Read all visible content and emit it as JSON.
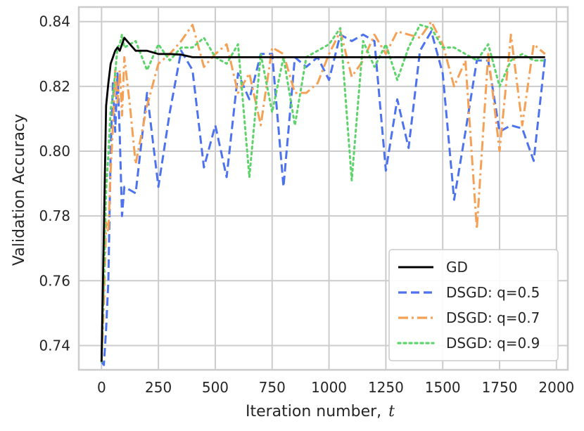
{
  "chart_data": {
    "type": "line",
    "xlabel": "Iteration number,",
    "xlabel_var": "t",
    "ylabel": "Validation Accuracy",
    "xlim": [
      -100,
      2050
    ],
    "ylim": [
      0.7325,
      0.8445
    ],
    "x_ticks": [
      0,
      250,
      500,
      750,
      1000,
      1250,
      1500,
      1750,
      2000
    ],
    "x_tick_labels": [
      "0",
      "250",
      "500",
      "750",
      "1000",
      "1250",
      "1500",
      "1750",
      "2000"
    ],
    "y_ticks": [
      0.74,
      0.76,
      0.78,
      0.8,
      0.82,
      0.84
    ],
    "y_tick_labels": [
      "0.74",
      "0.76",
      "0.78",
      "0.80",
      "0.82",
      "0.84"
    ],
    "grid": true,
    "legend_position": "lower-right",
    "series": [
      {
        "name": "GD",
        "color": "#000000",
        "style": "solid",
        "x": [
          0,
          10,
          20,
          30,
          40,
          50,
          60,
          70,
          80,
          90,
          100,
          125,
          150,
          200,
          250,
          300,
          350,
          400,
          500,
          750,
          1000,
          1250,
          1500,
          1750,
          1950
        ],
        "y": [
          0.735,
          0.775,
          0.814,
          0.821,
          0.827,
          0.829,
          0.831,
          0.832,
          0.831,
          0.833,
          0.835,
          0.833,
          0.831,
          0.831,
          0.83,
          0.83,
          0.8298,
          0.829,
          0.829,
          0.829,
          0.829,
          0.829,
          0.829,
          0.829,
          0.829
        ]
      },
      {
        "name": "DSGD: q=0.5",
        "color": "#4c72f0",
        "style": "dashed",
        "x": [
          0,
          10,
          20,
          30,
          40,
          50,
          60,
          70,
          80,
          90,
          100,
          150,
          200,
          250,
          300,
          350,
          400,
          450,
          500,
          550,
          600,
          650,
          700,
          750,
          800,
          850,
          900,
          950,
          1000,
          1050,
          1100,
          1150,
          1200,
          1250,
          1300,
          1350,
          1400,
          1450,
          1500,
          1550,
          1600,
          1650,
          1700,
          1750,
          1800,
          1850,
          1900,
          1950
        ],
        "y": [
          0.735,
          0.734,
          0.745,
          0.76,
          0.8,
          0.821,
          0.806,
          0.824,
          0.805,
          0.78,
          0.789,
          0.787,
          0.818,
          0.789,
          0.812,
          0.831,
          0.825,
          0.795,
          0.808,
          0.792,
          0.824,
          0.816,
          0.83,
          0.83,
          0.789,
          0.829,
          0.826,
          0.829,
          0.822,
          0.836,
          0.834,
          0.836,
          0.834,
          0.794,
          0.816,
          0.801,
          0.831,
          0.837,
          0.824,
          0.785,
          0.806,
          0.828,
          0.828,
          0.806,
          0.808,
          0.807,
          0.797,
          0.829
        ]
      },
      {
        "name": "DSGD: q=0.7",
        "color": "#f5a055",
        "style": "dashdot",
        "x": [
          0,
          10,
          20,
          30,
          40,
          50,
          60,
          70,
          80,
          90,
          100,
          125,
          150,
          200,
          250,
          300,
          350,
          400,
          450,
          500,
          550,
          600,
          650,
          700,
          750,
          800,
          850,
          900,
          950,
          1000,
          1050,
          1100,
          1150,
          1200,
          1250,
          1300,
          1350,
          1400,
          1450,
          1500,
          1550,
          1600,
          1650,
          1700,
          1750,
          1800,
          1850,
          1900,
          1950
        ],
        "y": [
          0.735,
          0.752,
          0.778,
          0.775,
          0.794,
          0.808,
          0.825,
          0.815,
          0.825,
          0.811,
          0.829,
          0.814,
          0.796,
          0.814,
          0.827,
          0.83,
          0.834,
          0.839,
          0.826,
          0.83,
          0.833,
          0.818,
          0.824,
          0.808,
          0.832,
          0.83,
          0.818,
          0.818,
          0.821,
          0.83,
          0.837,
          0.823,
          0.828,
          0.836,
          0.83,
          0.837,
          0.836,
          0.835,
          0.84,
          0.833,
          0.82,
          0.828,
          0.776,
          0.83,
          0.8,
          0.836,
          0.808,
          0.833,
          0.83
        ]
      },
      {
        "name": "DSGD: q=0.9",
        "color": "#5dd46a",
        "style": "dotted",
        "x": [
          0,
          10,
          20,
          30,
          40,
          50,
          60,
          70,
          80,
          90,
          100,
          150,
          200,
          250,
          300,
          350,
          400,
          450,
          500,
          550,
          600,
          650,
          700,
          750,
          800,
          850,
          900,
          950,
          1000,
          1050,
          1100,
          1150,
          1200,
          1250,
          1300,
          1350,
          1400,
          1450,
          1500,
          1550,
          1600,
          1650,
          1700,
          1750,
          1800,
          1850,
          1900,
          1950
        ],
        "y": [
          0.735,
          0.76,
          0.788,
          0.799,
          0.813,
          0.817,
          0.824,
          0.832,
          0.833,
          0.836,
          0.832,
          0.834,
          0.825,
          0.833,
          0.828,
          0.832,
          0.832,
          0.835,
          0.829,
          0.827,
          0.833,
          0.792,
          0.83,
          0.812,
          0.829,
          0.808,
          0.829,
          0.831,
          0.833,
          0.838,
          0.791,
          0.834,
          0.826,
          0.833,
          0.822,
          0.832,
          0.839,
          0.838,
          0.832,
          0.832,
          0.83,
          0.828,
          0.833,
          0.82,
          0.828,
          0.83,
          0.828,
          0.828
        ]
      }
    ]
  }
}
